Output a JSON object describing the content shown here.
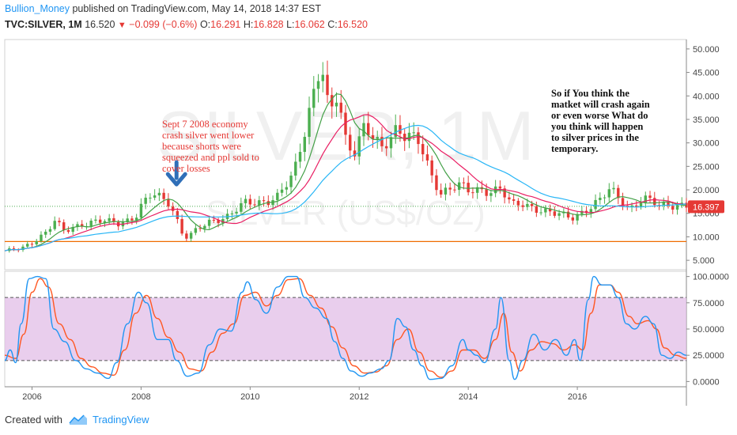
{
  "header": {
    "username": "Bullion_Money",
    "published_text": "published on TradingView.com, May 14, 2018 14:37 EST",
    "symbol": "TVC:SILVER, 1M",
    "price": "16.520",
    "change": "−0.099 (−0.6%)",
    "o_label": "O:",
    "o_value": "16.291",
    "h_label": "H:",
    "h_value": "16.828",
    "l_label": "L:",
    "l_value": "16.062",
    "c_label": "C:",
    "c_value": "16.520"
  },
  "footer": {
    "created_with": "Created with",
    "brand": "TradingView"
  },
  "colors": {
    "up": "#4caf50",
    "down": "#e53935",
    "ma_fast": "#43a047",
    "ma_mid": "#e91e63",
    "ma_slow": "#29b6f6",
    "k_line": "#2196f3",
    "d_line": "#ff5722",
    "band": "#e1bee7",
    "hline": "#ef6c00",
    "price_tag": "#e53935"
  },
  "chart_data": [
    {
      "type": "candlestick",
      "watermark_main": "SILVER, 1M",
      "watermark_sub": "SILVER (US$/OZ)",
      "price_tag": "16.397",
      "ylim": [
        3,
        52
      ],
      "y_ticks": [
        "5.000",
        "10.000",
        "15.000",
        "20.000",
        "25.000",
        "30.000",
        "35.000",
        "40.000",
        "45.000",
        "50.000"
      ],
      "y_tick_values": [
        5,
        10,
        15,
        20,
        25,
        30,
        35,
        40,
        45,
        50
      ],
      "x_ticks": [
        "2006",
        "2008",
        "2010",
        "2012",
        "2014",
        "2016"
      ],
      "x_tick_values": [
        2006,
        2008,
        2010,
        2012,
        2014,
        2016
      ],
      "xlim": [
        2005.5,
        2018.0
      ],
      "horizontal_line": 9.0,
      "dotted_line": 16.5,
      "close_anchors": [
        [
          2005.5,
          7.0
        ],
        [
          2005.8,
          7.4
        ],
        [
          2006.0,
          8.8
        ],
        [
          2006.3,
          11.5
        ],
        [
          2006.4,
          13.5
        ],
        [
          2006.6,
          11.0
        ],
        [
          2006.9,
          12.8
        ],
        [
          2007.2,
          13.4
        ],
        [
          2007.6,
          12.8
        ],
        [
          2007.9,
          14.5
        ],
        [
          2008.0,
          16.5
        ],
        [
          2008.2,
          19.0
        ],
        [
          2008.5,
          17.5
        ],
        [
          2008.6,
          15.5
        ],
        [
          2008.75,
          11.0
        ],
        [
          2008.85,
          9.8
        ],
        [
          2009.0,
          11.2
        ],
        [
          2009.3,
          13.5
        ],
        [
          2009.6,
          14.5
        ],
        [
          2009.9,
          17.0
        ],
        [
          2010.2,
          17.5
        ],
        [
          2010.5,
          18.5
        ],
        [
          2010.8,
          23.0
        ],
        [
          2010.95,
          30.5
        ],
        [
          2011.1,
          38.0
        ],
        [
          2011.3,
          48.0
        ],
        [
          2011.45,
          35.0
        ],
        [
          2011.6,
          40.0
        ],
        [
          2011.75,
          30.5
        ],
        [
          2011.9,
          28.5
        ],
        [
          2012.1,
          34.0
        ],
        [
          2012.4,
          28.0
        ],
        [
          2012.7,
          33.5
        ],
        [
          2012.9,
          32.0
        ],
        [
          2013.1,
          30.0
        ],
        [
          2013.3,
          23.0
        ],
        [
          2013.5,
          19.5
        ],
        [
          2013.8,
          21.5
        ],
        [
          2014.0,
          19.5
        ],
        [
          2014.3,
          19.8
        ],
        [
          2014.6,
          20.5
        ],
        [
          2014.8,
          16.5
        ],
        [
          2015.0,
          16.8
        ],
        [
          2015.3,
          16.0
        ],
        [
          2015.6,
          14.8
        ],
        [
          2015.9,
          14.0
        ],
        [
          2016.1,
          15.5
        ],
        [
          2016.4,
          17.5
        ],
        [
          2016.6,
          20.0
        ],
        [
          2016.85,
          17.5
        ],
        [
          2016.95,
          16.0
        ],
        [
          2017.2,
          18.0
        ],
        [
          2017.5,
          16.8
        ],
        [
          2017.8,
          17.0
        ],
        [
          2018.0,
          16.5
        ]
      ],
      "moving_averages": [
        "fast",
        "mid",
        "slow"
      ]
    },
    {
      "type": "line",
      "indicator": "stochastic",
      "ylim": [
        -5,
        105
      ],
      "y_ticks": [
        "0.0000",
        "25.0000",
        "50.0000",
        "75.0000",
        "100.0000"
      ],
      "y_tick_values": [
        0,
        25,
        50,
        75,
        100
      ],
      "upper_band": 80,
      "lower_band": 20,
      "series": [
        {
          "key": "k",
          "values": [
            [
              2005.5,
              20
            ],
            [
              2005.6,
              30
            ],
            [
              2005.7,
              18
            ],
            [
              2005.8,
              55
            ],
            [
              2005.95,
              98
            ],
            [
              2006.1,
              100
            ],
            [
              2006.25,
              98
            ],
            [
              2006.4,
              50
            ],
            [
              2006.6,
              38
            ],
            [
              2006.8,
              20
            ],
            [
              2007.0,
              12
            ],
            [
              2007.2,
              8
            ],
            [
              2007.4,
              3
            ],
            [
              2007.55,
              18
            ],
            [
              2007.75,
              55
            ],
            [
              2007.95,
              85
            ],
            [
              2008.1,
              75
            ],
            [
              2008.3,
              40
            ],
            [
              2008.5,
              40
            ],
            [
              2008.65,
              20
            ],
            [
              2008.85,
              5
            ],
            [
              2009.05,
              8
            ],
            [
              2009.25,
              35
            ],
            [
              2009.45,
              50
            ],
            [
              2009.65,
              48
            ],
            [
              2009.85,
              85
            ],
            [
              2009.95,
              95
            ],
            [
              2010.1,
              78
            ],
            [
              2010.3,
              65
            ],
            [
              2010.5,
              90
            ],
            [
              2010.7,
              100
            ],
            [
              2010.85,
              100
            ],
            [
              2011.0,
              80
            ],
            [
              2011.2,
              70
            ],
            [
              2011.4,
              60
            ],
            [
              2011.55,
              38
            ],
            [
              2011.7,
              22
            ],
            [
              2011.85,
              10
            ],
            [
              2012.05,
              5
            ],
            [
              2012.2,
              8
            ],
            [
              2012.4,
              12
            ],
            [
              2012.55,
              20
            ],
            [
              2012.7,
              60
            ],
            [
              2012.85,
              52
            ],
            [
              2013.0,
              30
            ],
            [
              2013.15,
              15
            ],
            [
              2013.3,
              2
            ],
            [
              2013.5,
              3
            ],
            [
              2013.7,
              15
            ],
            [
              2013.9,
              40
            ],
            [
              2014.0,
              30
            ],
            [
              2014.15,
              25
            ],
            [
              2014.3,
              18
            ],
            [
              2014.5,
              50
            ],
            [
              2014.6,
              80
            ],
            [
              2014.75,
              20
            ],
            [
              2014.85,
              2
            ],
            [
              2015.0,
              20
            ],
            [
              2015.2,
              45
            ],
            [
              2015.4,
              30
            ],
            [
              2015.6,
              40
            ],
            [
              2015.8,
              25
            ],
            [
              2015.95,
              40
            ],
            [
              2016.05,
              20
            ],
            [
              2016.2,
              78
            ],
            [
              2016.3,
              100
            ],
            [
              2016.45,
              92
            ],
            [
              2016.6,
              92
            ],
            [
              2016.75,
              80
            ],
            [
              2016.9,
              55
            ],
            [
              2017.05,
              50
            ],
            [
              2017.25,
              62
            ],
            [
              2017.4,
              55
            ],
            [
              2017.55,
              25
            ],
            [
              2017.7,
              22
            ],
            [
              2017.85,
              28
            ],
            [
              2018.0,
              25
            ]
          ]
        },
        {
          "key": "d",
          "values": [
            [
              2005.5,
              25
            ],
            [
              2005.7,
              22
            ],
            [
              2005.85,
              45
            ],
            [
              2006.0,
              85
            ],
            [
              2006.15,
              98
            ],
            [
              2006.3,
              90
            ],
            [
              2006.5,
              55
            ],
            [
              2006.7,
              40
            ],
            [
              2006.9,
              22
            ],
            [
              2007.1,
              14
            ],
            [
              2007.3,
              8
            ],
            [
              2007.5,
              6
            ],
            [
              2007.7,
              30
            ],
            [
              2007.9,
              65
            ],
            [
              2008.1,
              82
            ],
            [
              2008.3,
              60
            ],
            [
              2008.5,
              42
            ],
            [
              2008.7,
              28
            ],
            [
              2008.9,
              12
            ],
            [
              2009.1,
              10
            ],
            [
              2009.3,
              28
            ],
            [
              2009.5,
              46
            ],
            [
              2009.7,
              55
            ],
            [
              2009.9,
              82
            ],
            [
              2010.1,
              85
            ],
            [
              2010.3,
              72
            ],
            [
              2010.5,
              82
            ],
            [
              2010.7,
              97
            ],
            [
              2010.9,
              98
            ],
            [
              2011.1,
              82
            ],
            [
              2011.3,
              70
            ],
            [
              2011.5,
              52
            ],
            [
              2011.7,
              32
            ],
            [
              2011.9,
              15
            ],
            [
              2012.1,
              8
            ],
            [
              2012.3,
              9
            ],
            [
              2012.5,
              15
            ],
            [
              2012.7,
              40
            ],
            [
              2012.9,
              50
            ],
            [
              2013.1,
              28
            ],
            [
              2013.3,
              10
            ],
            [
              2013.5,
              4
            ],
            [
              2013.7,
              10
            ],
            [
              2013.9,
              30
            ],
            [
              2014.1,
              30
            ],
            [
              2014.3,
              22
            ],
            [
              2014.5,
              40
            ],
            [
              2014.65,
              65
            ],
            [
              2014.8,
              28
            ],
            [
              2014.95,
              10
            ],
            [
              2015.15,
              30
            ],
            [
              2015.35,
              38
            ],
            [
              2015.55,
              36
            ],
            [
              2015.75,
              30
            ],
            [
              2015.95,
              35
            ],
            [
              2016.1,
              30
            ],
            [
              2016.25,
              65
            ],
            [
              2016.4,
              92
            ],
            [
              2016.6,
              92
            ],
            [
              2016.75,
              85
            ],
            [
              2016.95,
              62
            ],
            [
              2017.1,
              55
            ],
            [
              2017.3,
              58
            ],
            [
              2017.45,
              50
            ],
            [
              2017.6,
              32
            ],
            [
              2017.8,
              25
            ],
            [
              2018.0,
              22
            ]
          ]
        }
      ]
    }
  ],
  "annotations": {
    "left_lines": [
      "Sept 7 2008 economy",
      "crash silver went lower",
      "because shorts were",
      "squeezed and ppl sold to",
      "cover losses"
    ],
    "right_lines": [
      "So if You think the",
      "matket will crash again",
      "or even worse What do",
      "you think will happen",
      "to silver prices  in the",
      "temporary."
    ],
    "arrow_x": 2008.65,
    "arrow_y": 21.5
  }
}
